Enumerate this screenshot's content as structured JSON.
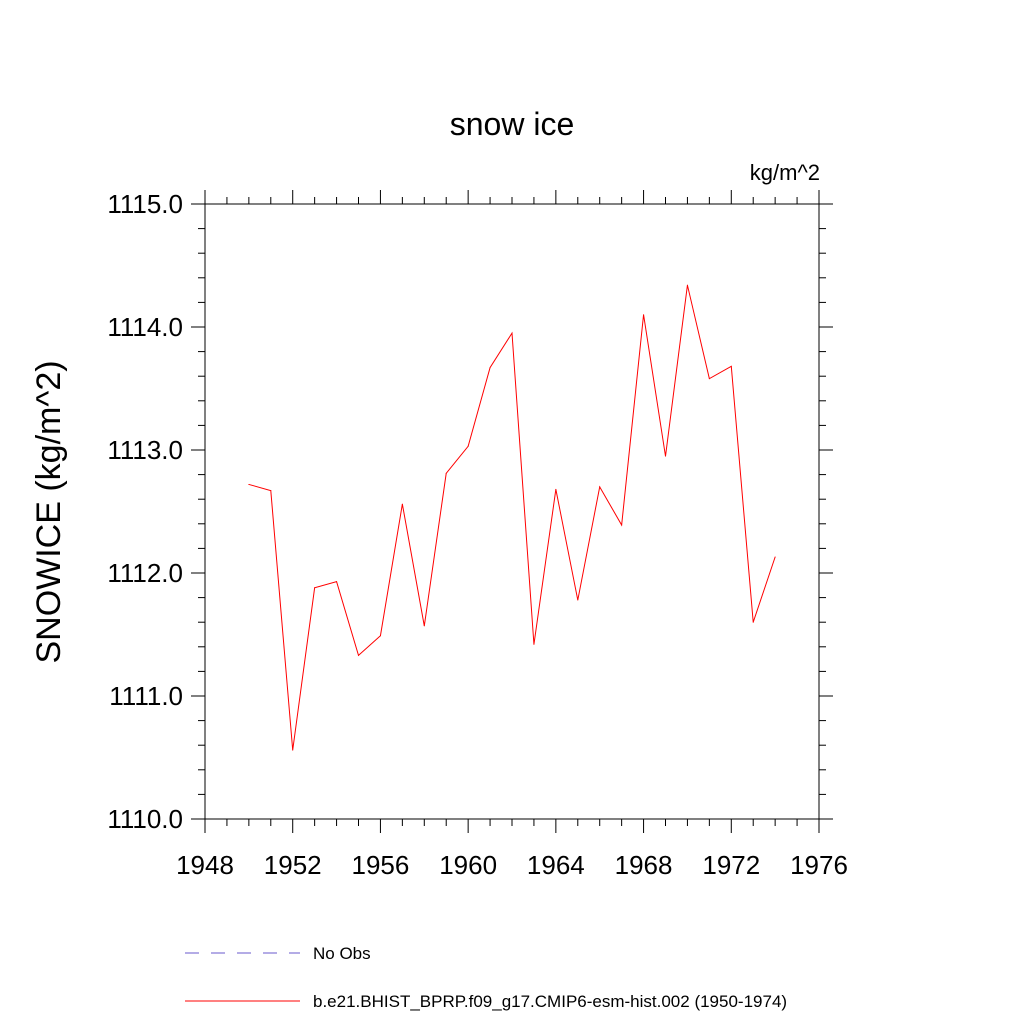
{
  "chart_data": {
    "type": "line",
    "title": "snow ice",
    "units": "kg/m^2",
    "ylabel": "SNOWICE  (kg/m^2)",
    "xlabel": "",
    "xlim": [
      1948,
      1976
    ],
    "ylim": [
      1110.0,
      1115.0
    ],
    "x_ticks": [
      1948,
      1952,
      1956,
      1960,
      1964,
      1968,
      1972,
      1976
    ],
    "y_ticks": [
      1110.0,
      1111.0,
      1112.0,
      1113.0,
      1114.0,
      1115.0
    ],
    "x_tick_labels": [
      "1948",
      "1952",
      "1956",
      "1960",
      "1964",
      "1968",
      "1972",
      "1976"
    ],
    "y_tick_labels": [
      "1110.0",
      "1111.0",
      "1112.0",
      "1113.0",
      "1114.0",
      "1115.0"
    ],
    "grid": false,
    "legend_position": "bottom",
    "series": [
      {
        "name": "No Obs",
        "color": "#6a5acd",
        "style": "dashed",
        "x": [],
        "y": []
      },
      {
        "name": "b.e21.BHIST_BPRP.f09_g17.CMIP6-esm-hist.002 (1950-1974)",
        "color": "#ff0000",
        "style": "solid",
        "x": [
          1950,
          1951,
          1952,
          1953,
          1954,
          1955,
          1956,
          1957,
          1958,
          1959,
          1960,
          1961,
          1962,
          1963,
          1964,
          1965,
          1966,
          1967,
          1968,
          1969,
          1970,
          1971,
          1972,
          1973,
          1974
        ],
        "y": [
          1112.72,
          1112.67,
          1110.56,
          1111.88,
          1111.93,
          1111.33,
          1111.49,
          1112.56,
          1111.57,
          1112.81,
          1113.03,
          1113.67,
          1113.95,
          1111.42,
          1112.68,
          1111.78,
          1112.7,
          1112.39,
          1114.1,
          1112.95,
          1114.34,
          1113.58,
          1113.68,
          1111.6,
          1112.13
        ]
      }
    ]
  }
}
